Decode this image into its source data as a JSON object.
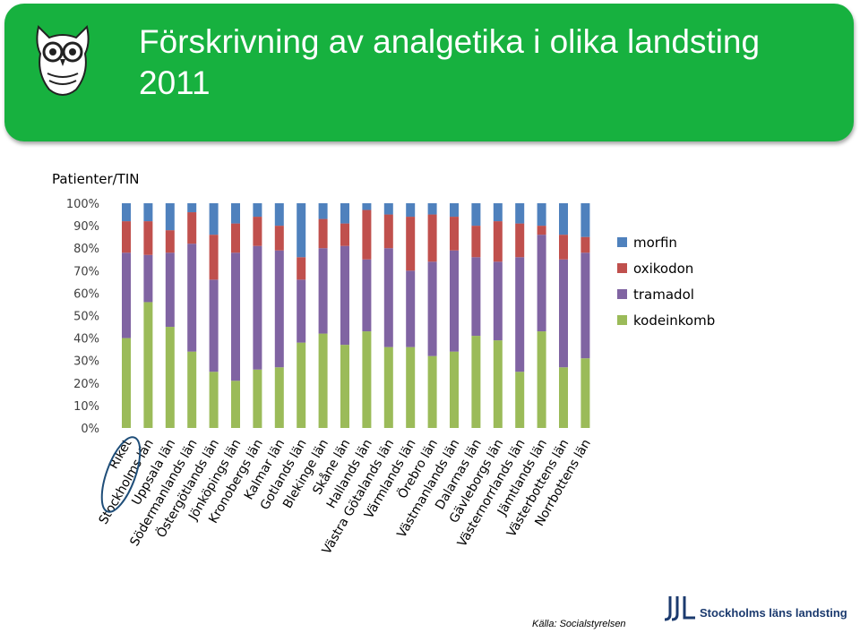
{
  "header": {
    "title": "Förskrivning av analgetika i olika landsting 2011",
    "logo_icon": "owl-icon"
  },
  "colors": {
    "banner": "#17b13f",
    "morfin": "#4f81bd",
    "oxikodon": "#c0504d",
    "tramadol": "#8064a2",
    "kodeinkomb": "#9bbb59",
    "highlight_circle": "#1f4e79"
  },
  "chart_data": {
    "type": "bar",
    "stacked": "percent",
    "title": "",
    "ylabel": "Patienter/TIN",
    "xlabel": "",
    "ylim": [
      0,
      100
    ],
    "yticks": [
      "0%",
      "10%",
      "20%",
      "30%",
      "40%",
      "50%",
      "60%",
      "70%",
      "80%",
      "90%",
      "100%"
    ],
    "legend_position": "right",
    "grid": false,
    "highlighted_category": "Riket",
    "categories": [
      "Riket",
      "Stockholms län",
      "Uppsala län",
      "Södermanlands län",
      "Östergötlands län",
      "Jönköpings län",
      "Kronobergs län",
      "Kalmar län",
      "Gotlands län",
      "Blekinge län",
      "Skåne län",
      "Hallands län",
      "Västra Götalands län",
      "Värmlands län",
      "Örebro län",
      "Västmanlands län",
      "Dalarnas län",
      "Gävleborgs län",
      "Västernorrlands län",
      "Jämtlands län",
      "Västerbottens län",
      "Norrbottens län"
    ],
    "series": [
      {
        "name": "kodeinkomb",
        "values": [
          40,
          56,
          45,
          34,
          25,
          21,
          26,
          27,
          38,
          42,
          37,
          43,
          36,
          36,
          32,
          34,
          41,
          39,
          25,
          43,
          27,
          31
        ]
      },
      {
        "name": "tramadol",
        "values": [
          38,
          21,
          33,
          48,
          41,
          57,
          55,
          52,
          28,
          38,
          44,
          32,
          44,
          34,
          42,
          45,
          35,
          35,
          51,
          43,
          48,
          47
        ]
      },
      {
        "name": "oxikodon",
        "values": [
          14,
          15,
          10,
          14,
          20,
          13,
          13,
          11,
          10,
          13,
          10,
          22,
          15,
          24,
          21,
          15,
          14,
          18,
          15,
          4,
          11,
          7
        ]
      },
      {
        "name": "morfin",
        "values": [
          8,
          8,
          12,
          4,
          14,
          9,
          6,
          10,
          24,
          7,
          9,
          3,
          5,
          6,
          5,
          6,
          10,
          8,
          9,
          10,
          14,
          15
        ]
      }
    ]
  },
  "footer": {
    "source": "Källa: Socialstyrelsen",
    "logo_name": "Stockholms läns landsting",
    "logo_icon": "sll-logo-icon"
  }
}
